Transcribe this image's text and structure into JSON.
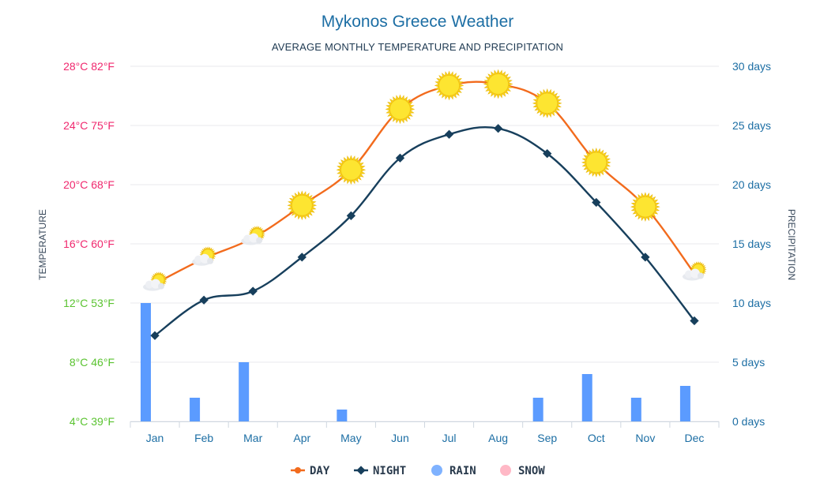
{
  "chart_data": {
    "type": "line",
    "title": "Mykonos Greece Weather",
    "subtitle": "AVERAGE MONTHLY TEMPERATURE AND PRECIPITATION",
    "ylabel_left": "TEMPERATURE",
    "ylabel_right": "PRECIPITATION",
    "categories": [
      "Jan",
      "Feb",
      "Mar",
      "Apr",
      "May",
      "Jun",
      "Jul",
      "Aug",
      "Sep",
      "Oct",
      "Nov",
      "Dec"
    ],
    "temp_ylim_c": [
      4,
      28
    ],
    "temp_ticks": [
      {
        "c": 28,
        "label": "28°C 82°F"
      },
      {
        "c": 24,
        "label": "24°C 75°F"
      },
      {
        "c": 20,
        "label": "20°C 68°F"
      },
      {
        "c": 16,
        "label": "16°C 60°F"
      },
      {
        "c": 12,
        "label": "12°C 53°F"
      },
      {
        "c": 8,
        "label": "8°C 46°F"
      },
      {
        "c": 4,
        "label": "4°C 39°F"
      }
    ],
    "precip_ylim_days": [
      0,
      30
    ],
    "precip_ticks": [
      {
        "v": 30,
        "label": "30 days"
      },
      {
        "v": 25,
        "label": "25 days"
      },
      {
        "v": 20,
        "label": "20 days"
      },
      {
        "v": 15,
        "label": "15 days"
      },
      {
        "v": 10,
        "label": "10 days"
      },
      {
        "v": 5,
        "label": "5 days"
      },
      {
        "v": 0,
        "label": "0 days"
      }
    ],
    "series": [
      {
        "name": "DAY",
        "color": "#f26b1d",
        "values": [
          13.3,
          15.0,
          16.4,
          18.6,
          21.0,
          25.1,
          26.7,
          26.8,
          25.5,
          21.5,
          18.5,
          14.0
        ]
      },
      {
        "name": "NIGHT",
        "color": "#173f5c",
        "values": [
          9.8,
          12.2,
          12.8,
          15.1,
          17.9,
          21.8,
          23.4,
          23.8,
          22.1,
          18.8,
          15.1,
          10.8
        ]
      }
    ],
    "rain_days": [
      10,
      2,
      5,
      0,
      1,
      0,
      0,
      0,
      2,
      4,
      2,
      3
    ],
    "rain_color": "#5b9bff",
    "weather_icons": [
      "partly-cloudy",
      "partly-cloudy",
      "partly-cloudy",
      "sun",
      "sun",
      "sun",
      "sun",
      "sun",
      "sun",
      "sun",
      "sun",
      "partly-cloudy"
    ],
    "legend": [
      {
        "label": "DAY",
        "color": "#f26b1d",
        "icon": "line-marker"
      },
      {
        "label": "NIGHT",
        "color": "#173f5c",
        "icon": "line-marker"
      },
      {
        "label": "RAIN",
        "color": "#7fb2ff",
        "icon": "dot"
      },
      {
        "label": "SNOW",
        "color": "#ffb8c6",
        "icon": "dot"
      }
    ],
    "grid": true,
    "legend_position": "bottom"
  }
}
